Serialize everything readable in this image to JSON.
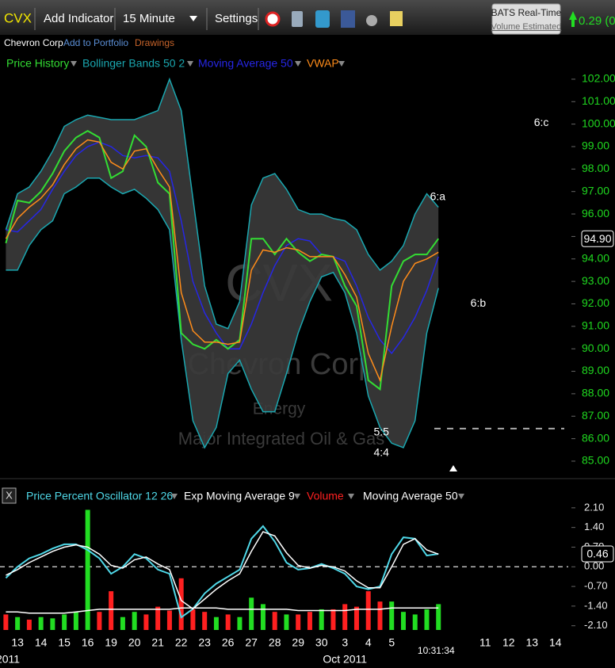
{
  "toolbar": {
    "symbol": "CVX",
    "add_indicator": "Add Indicator",
    "interval": "15 Minute",
    "settings": "Settings",
    "feed": "BATS Real-Time",
    "feed_note": "Volume Estimated",
    "change": "0.29 (0."
  },
  "header": {
    "company": "Chevron Corp",
    "add_to_portfolio": "Add to Portfolio",
    "drawings": "Drawings"
  },
  "chart_data": [
    {
      "type": "line",
      "watermark": {
        "symbol": "CVX",
        "company": "Chevron Corp",
        "sector": "Energy",
        "industry": "Major Integrated Oil & Gas"
      },
      "x": [
        -0.5,
        0,
        0.5,
        1,
        1.5,
        2,
        2.5,
        3,
        3.5,
        4,
        4.5,
        5,
        5.5,
        6,
        6.5,
        7,
        7.5,
        8,
        8.5,
        9,
        9.5,
        10,
        10.5,
        11,
        11.5,
        12,
        12.5,
        13,
        13.5,
        14,
        14.5,
        15,
        15.5,
        16,
        16.5,
        17,
        17.5,
        18
      ],
      "xlim": [
        -0.75,
        23.55
      ],
      "ylim": [
        84.54,
        102.35
      ],
      "yticks": [
        {
          "value": 102,
          "label": "102.00"
        },
        {
          "value": 101,
          "label": "101.00"
        },
        {
          "value": 100,
          "label": "100.00"
        },
        {
          "value": 99,
          "label": "99.00"
        },
        {
          "value": 98,
          "label": "98.00"
        },
        {
          "value": 97,
          "label": "97.00"
        },
        {
          "value": 96,
          "label": "96.00"
        },
        {
          "value": 95,
          "label": "95.00"
        },
        {
          "value": 94,
          "label": "94.00"
        },
        {
          "value": 93,
          "label": "93.00"
        },
        {
          "value": 92,
          "label": "92.00"
        },
        {
          "value": 91,
          "label": "91.00"
        },
        {
          "value": 90,
          "label": "90.00"
        },
        {
          "value": 89,
          "label": "89.00"
        },
        {
          "value": 88,
          "label": "88.00"
        },
        {
          "value": 87,
          "label": "87.00"
        },
        {
          "value": 86,
          "label": "86.00"
        },
        {
          "value": 85,
          "label": "85.00"
        }
      ],
      "series": [
        {
          "name": "Price History",
          "color": "#33dd33",
          "values": [
            94.7,
            96.6,
            96.5,
            97.0,
            97.8,
            98.8,
            99.4,
            99.7,
            99.4,
            97.6,
            97.9,
            99.5,
            99.0,
            97.4,
            96.9,
            90.7,
            90.2,
            90.0,
            90.4,
            90.0,
            90.4,
            94.9,
            94.9,
            94.2,
            94.9,
            94.3,
            93.9,
            94.2,
            94.1,
            92.8,
            91.9,
            88.6,
            88.2,
            92.8,
            93.9,
            94.2,
            94.2,
            94.9
          ]
        },
        {
          "name": "Bollinger Bands 50 2",
          "color": "#1aa7b0",
          "values": [
            95.3,
            96.9,
            97.2,
            97.9,
            98.8,
            99.9,
            100.2,
            100.4,
            100.3,
            100.2,
            100.2,
            100.2,
            100.4,
            100.6,
            102.0,
            100.6,
            96.7,
            92.8,
            91.1,
            90.9,
            92.1,
            96.4,
            97.6,
            97.8,
            97.1,
            96.2,
            96.0,
            96.0,
            95.8,
            95.7,
            95.3,
            94.2,
            93.5,
            93.9,
            94.6,
            96.0,
            96.9,
            96.3
          ],
          "lower": [
            93.5,
            93.5,
            94.6,
            95.3,
            95.7,
            96.9,
            97.2,
            97.6,
            97.6,
            97.2,
            96.9,
            97.1,
            96.7,
            96.2,
            95.3,
            90.4,
            86.8,
            85.6,
            86.5,
            88.9,
            89.5,
            88.2,
            87.2,
            87.2,
            88.9,
            90.7,
            92.1,
            93.2,
            93.4,
            92.5,
            90.7,
            87.9,
            86.5,
            85.8,
            85.6,
            86.8,
            90.7,
            92.7
          ]
        },
        {
          "name": "Moving Average 50",
          "color": "#2626e6",
          "values": [
            95.3,
            95.2,
            95.7,
            96.2,
            97.1,
            97.9,
            98.6,
            99.0,
            99.2,
            99.0,
            98.6,
            98.5,
            98.6,
            98.5,
            97.9,
            95.7,
            93.0,
            91.6,
            90.7,
            90.0,
            90.0,
            91.1,
            92.5,
            93.7,
            94.6,
            94.9,
            94.8,
            94.2,
            94.1,
            93.9,
            92.8,
            91.4,
            90.4,
            89.8,
            90.5,
            91.4,
            92.6,
            94.1
          ]
        },
        {
          "name": "VWAP",
          "color": "#ff8c1a",
          "values": [
            94.9,
            95.8,
            96.3,
            96.7,
            97.3,
            98.2,
            98.9,
            99.3,
            99.2,
            98.3,
            98.0,
            98.8,
            98.9,
            98.0,
            97.2,
            92.5,
            90.8,
            90.3,
            90.3,
            90.2,
            90.3,
            93.5,
            94.4,
            94.3,
            94.5,
            94.4,
            94.1,
            94.1,
            94.1,
            93.3,
            92.3,
            89.8,
            88.6,
            91.0,
            93.0,
            93.8,
            94.0,
            94.3
          ]
        }
      ],
      "last_value": {
        "value": 94.9,
        "label": "94.90"
      },
      "level": 86.45,
      "annotations": [
        {
          "text": "6:c",
          "x": 22.4,
          "y": 100.05
        },
        {
          "text": "6:a",
          "x": 17.97,
          "y": 96.75
        },
        {
          "text": "6:b",
          "x": 19.7,
          "y": 92.0
        },
        {
          "text": "5:5",
          "x": 15.56,
          "y": 86.27
        },
        {
          "text": "4:4",
          "x": 15.56,
          "y": 85.35
        }
      ]
    },
    {
      "type": "line",
      "legend_close": "X",
      "x": [
        -0.5,
        0,
        0.5,
        1,
        1.5,
        2,
        2.5,
        3,
        3.5,
        4,
        4.5,
        5,
        5.5,
        6,
        6.5,
        7,
        7.5,
        8,
        8.5,
        9,
        9.5,
        10,
        10.5,
        11,
        11.5,
        12,
        12.5,
        13,
        13.5,
        14,
        14.5,
        15,
        15.5,
        16,
        16.5,
        17,
        17.5,
        18
      ],
      "xlim": [
        -0.75,
        23.55
      ],
      "xticks": [
        {
          "value": 0,
          "label": "13"
        },
        {
          "value": 1,
          "label": "14"
        },
        {
          "value": 2,
          "label": "15"
        },
        {
          "value": 3,
          "label": "16"
        },
        {
          "value": 4,
          "label": "19"
        },
        {
          "value": 5,
          "label": "20"
        },
        {
          "value": 6,
          "label": "21"
        },
        {
          "value": 7,
          "label": "22"
        },
        {
          "value": 8,
          "label": "23"
        },
        {
          "value": 9,
          "label": "26"
        },
        {
          "value": 10,
          "label": "27"
        },
        {
          "value": 11,
          "label": "28"
        },
        {
          "value": 12,
          "label": "29"
        },
        {
          "value": 13,
          "label": "30"
        },
        {
          "value": 14,
          "label": "3"
        },
        {
          "value": 15,
          "label": "4"
        },
        {
          "value": 16,
          "label": "5"
        },
        {
          "value": 20,
          "label": "11"
        },
        {
          "value": 21,
          "label": "12"
        },
        {
          "value": 22,
          "label": "13"
        },
        {
          "value": 23,
          "label": "14"
        }
      ],
      "period_labels": [
        {
          "value": -0.41,
          "label": "2011"
        },
        {
          "value": 14,
          "label": "Oct 2011"
        }
      ],
      "time_label": {
        "value": 17.9,
        "label": "10:31:34"
      },
      "ylim": [
        -2.25,
        2.35
      ],
      "yticks": [
        {
          "value": 2.1,
          "label": "2.10"
        },
        {
          "value": 1.4,
          "label": "1.40"
        },
        {
          "value": 0.7,
          "label": "0.70"
        },
        {
          "value": 0,
          "label": "0.00"
        },
        {
          "value": -0.7,
          "label": "-0.70"
        },
        {
          "value": -1.4,
          "label": "-1.40"
        },
        {
          "value": -2.1,
          "label": "-2.10"
        }
      ],
      "y2lim": [
        0,
        100
      ],
      "series": [
        {
          "name": "Price Percent Oscillator 12 26",
          "color": "#4fd8e8",
          "values": [
            -0.4,
            0.0,
            0.3,
            0.45,
            0.65,
            0.8,
            0.8,
            0.6,
            0.3,
            -0.25,
            0.0,
            0.45,
            0.3,
            -0.1,
            -0.25,
            -1.8,
            -1.5,
            -0.95,
            -0.6,
            -0.35,
            -0.1,
            1.0,
            1.45,
            0.9,
            0.15,
            -0.1,
            -0.05,
            0.1,
            -0.05,
            -0.25,
            -0.7,
            -0.8,
            -0.7,
            0.45,
            1.05,
            1.0,
            0.4,
            0.46
          ]
        },
        {
          "name": "Exp Moving Average 9",
          "color": "#ffffff",
          "values": [
            -0.3,
            -0.1,
            0.15,
            0.35,
            0.55,
            0.7,
            0.78,
            0.7,
            0.45,
            0.05,
            -0.05,
            0.25,
            0.35,
            0.1,
            -0.1,
            -1.2,
            -1.5,
            -1.15,
            -0.8,
            -0.5,
            -0.25,
            0.55,
            1.25,
            1.1,
            0.5,
            0.05,
            -0.05,
            0.05,
            0.0,
            -0.15,
            -0.5,
            -0.75,
            -0.75,
            0.0,
            0.8,
            1.0,
            0.6,
            0.45
          ]
        },
        {
          "name": "Volume",
          "color": "#ff2020",
          "up_color": "#22dd22",
          "axis": "y2",
          "values": [
            12,
            10,
            8,
            10,
            9,
            12,
            14,
            93,
            14,
            30,
            10,
            14,
            12,
            18,
            15,
            40,
            16,
            14,
            10,
            12,
            10,
            25,
            20,
            14,
            12,
            12,
            14,
            16,
            16,
            20,
            18,
            30,
            22,
            22,
            14,
            12,
            16,
            20
          ]
        },
        {
          "name": "Moving Average 50",
          "color": "#ffffff",
          "axis": "y2",
          "values": [
            14,
            14,
            13,
            13,
            13,
            13,
            14,
            15,
            16,
            16,
            16,
            16,
            16,
            16,
            16,
            17,
            17,
            17,
            17,
            16,
            16,
            16,
            16,
            16,
            16,
            15,
            15,
            15,
            15,
            15,
            16,
            16,
            16,
            17,
            17,
            17,
            17,
            17
          ]
        }
      ],
      "last_value": {
        "value": 0.46,
        "label": "0.46"
      }
    }
  ]
}
